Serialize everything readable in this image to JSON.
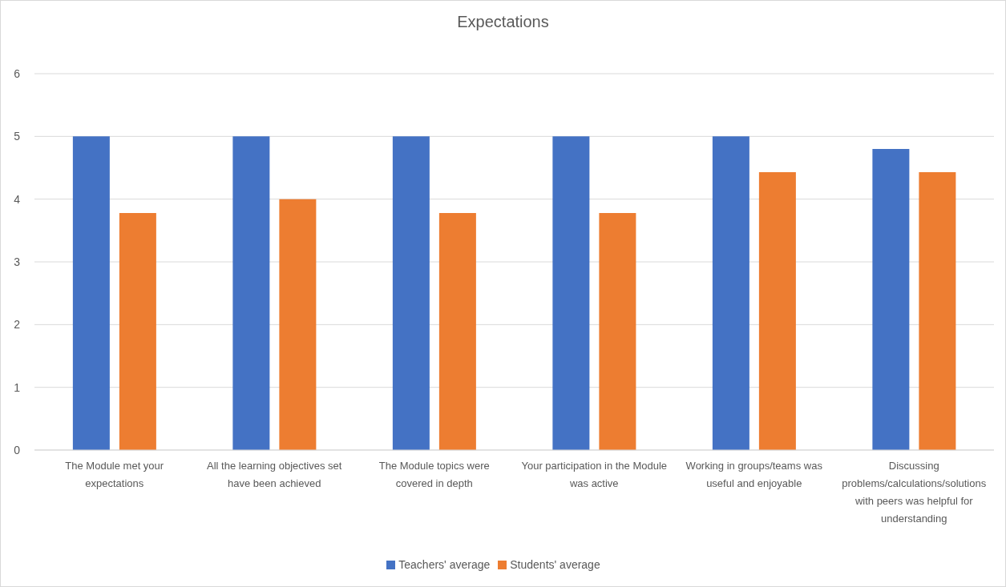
{
  "chart_data": {
    "type": "bar",
    "title": "Expectations",
    "categories": [
      "The Module met your expectations",
      "All the learning objectives set have been achieved",
      "The Module topics were covered in depth",
      "Your participation in the Module was active",
      "Working in groups/teams was useful and enjoyable",
      "Discussing problems/calculations/solutions with peers was helpful for understanding"
    ],
    "series": [
      {
        "name": "Teachers' average",
        "color": "#4472c4",
        "values": [
          5,
          5,
          5,
          5,
          5,
          4.8
        ]
      },
      {
        "name": "Students' average",
        "color": "#ed7d31",
        "values": [
          3.78,
          4,
          3.78,
          3.78,
          4.43,
          4.43
        ]
      }
    ],
    "ylim": [
      0,
      6
    ],
    "yticks": [
      0,
      1,
      2,
      3,
      4,
      5,
      6
    ],
    "grid": "y",
    "legend": "bottom"
  }
}
